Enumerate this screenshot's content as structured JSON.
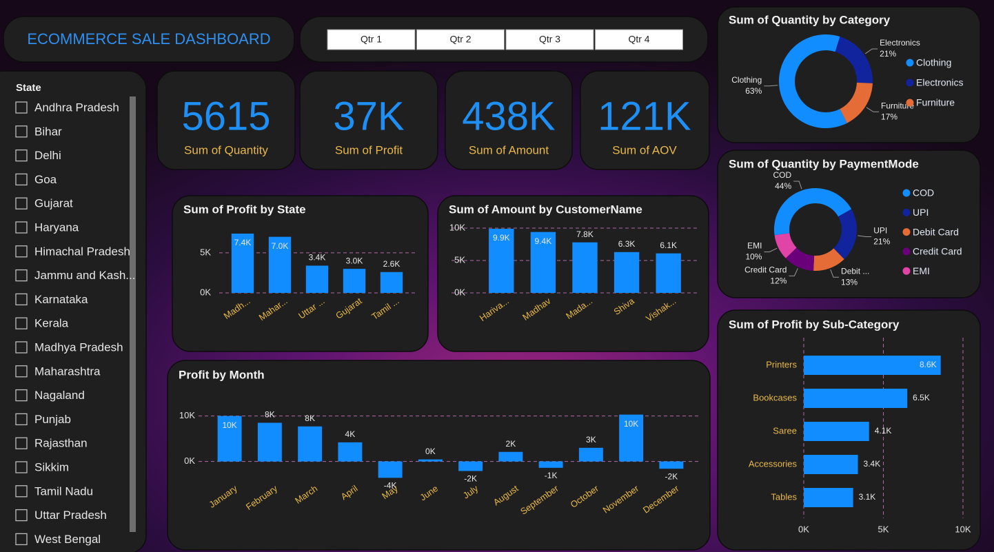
{
  "header": {
    "title": "ECOMMERCE SALE DASHBOARD"
  },
  "quarters": [
    "Qtr 1",
    "Qtr 2",
    "Qtr 3",
    "Qtr 4"
  ],
  "state_slicer": {
    "title": "State",
    "items": [
      "Andhra Pradesh",
      "Bihar",
      "Delhi",
      "Goa",
      "Gujarat",
      "Haryana",
      "Himachal Pradesh",
      "Jammu and Kash...",
      "Karnataka",
      "Kerala",
      "Madhya Pradesh",
      "Maharashtra",
      "Nagaland",
      "Punjab",
      "Rajasthan",
      "Sikkim",
      "Tamil Nadu",
      "Uttar Pradesh",
      "West Bengal"
    ]
  },
  "kpis": [
    {
      "value": 5615,
      "caption": "Sum of Quantity"
    },
    {
      "value": 37000,
      "value_label": "37K",
      "caption": "Sum of Profit"
    },
    {
      "value": 438000,
      "value_label": "438K",
      "caption": "Sum of Amount"
    },
    {
      "value": 121000,
      "value_label": "121K",
      "caption": "Sum of AOV"
    }
  ],
  "chart_data": [
    {
      "type": "bar",
      "title": "Sum of Profit by State",
      "categories": [
        "Madh...",
        "Mahar...",
        "Uttar ...",
        "Gujarat",
        "Tamil ..."
      ],
      "values": [
        7400,
        7000,
        3400,
        3000,
        2600
      ],
      "value_labels": [
        "7.4K",
        "7.0K",
        "3.4K",
        "3.0K",
        "2.6K"
      ],
      "color": "#118dff",
      "ylim": [
        0,
        8000
      ],
      "yticks": [
        {
          "value": 0,
          "label": "0K"
        },
        {
          "value": 5000,
          "label": "5K"
        }
      ],
      "grid": true
    },
    {
      "type": "bar",
      "title": "Sum of Amount by CustomerName",
      "categories": [
        "Hariva...",
        "Madhav",
        "Mada...",
        "Shiva",
        "Vishak..."
      ],
      "values": [
        9900,
        9400,
        7800,
        6300,
        6100
      ],
      "value_labels": [
        "9.9K",
        "9.4K",
        "7.8K",
        "6.3K",
        "6.1K"
      ],
      "color": "#118dff",
      "ylim": [
        0,
        10000
      ],
      "yticks": [
        {
          "value": 0,
          "label": "0K"
        },
        {
          "value": 5000,
          "label": "5K"
        },
        {
          "value": 10000,
          "label": "10K"
        }
      ],
      "grid": true
    },
    {
      "type": "bar",
      "title": "Profit by Month",
      "categories": [
        "January",
        "February",
        "March",
        "April",
        "May",
        "June",
        "July",
        "August",
        "September",
        "October",
        "November",
        "December"
      ],
      "values": [
        10000,
        8500,
        7700,
        4200,
        -3600,
        450,
        -2100,
        2100,
        -1400,
        3000,
        10300,
        -1600
      ],
      "value_labels": [
        "10K",
        "8K",
        "8K",
        "4K",
        "-4K",
        "0K",
        "-2K",
        "2K",
        "-1K",
        "3K",
        "10K",
        "-2K"
      ],
      "color": "#118dff",
      "ylim": [
        -4000,
        11000
      ],
      "yticks": [
        {
          "value": 0,
          "label": "0K"
        },
        {
          "value": 10000,
          "label": "10K"
        }
      ],
      "grid": true
    },
    {
      "type": "donut",
      "title": "Sum of Quantity by Category",
      "categories": [
        "Clothing",
        "Electronics",
        "Furniture"
      ],
      "values": [
        63,
        21,
        17
      ],
      "value_labels": [
        "63%",
        "21%",
        "17%"
      ],
      "colors": [
        "#118dff",
        "#12239e",
        "#e66c37"
      ]
    },
    {
      "type": "donut",
      "title": "Sum of Quantity by PaymentMode",
      "categories": [
        "COD",
        "UPI",
        "Debit Card",
        "Credit Card",
        "EMI"
      ],
      "slice_labels": [
        "COD",
        "UPI",
        "Debit ...",
        "Credit Card",
        "EMI"
      ],
      "values": [
        44,
        21,
        13,
        12,
        10
      ],
      "value_labels": [
        "44%",
        "21%",
        "13%",
        "12%",
        "10%"
      ],
      "colors": [
        "#118dff",
        "#12239e",
        "#e66c37",
        "#6b007b",
        "#e044a7"
      ]
    },
    {
      "type": "barh",
      "title": "Sum of Profit by Sub-Category",
      "categories": [
        "Printers",
        "Bookcases",
        "Saree",
        "Accessories",
        "Tables"
      ],
      "values": [
        8600,
        6500,
        4100,
        3400,
        3100
      ],
      "value_labels": [
        "8.6K",
        "6.5K",
        "4.1K",
        "3.4K",
        "3.1K"
      ],
      "color": "#118dff",
      "xlim": [
        0,
        10000
      ],
      "xticks": [
        {
          "value": 0,
          "label": "0K"
        },
        {
          "value": 5000,
          "label": "5K"
        },
        {
          "value": 10000,
          "label": "10K"
        }
      ],
      "grid": true
    }
  ]
}
